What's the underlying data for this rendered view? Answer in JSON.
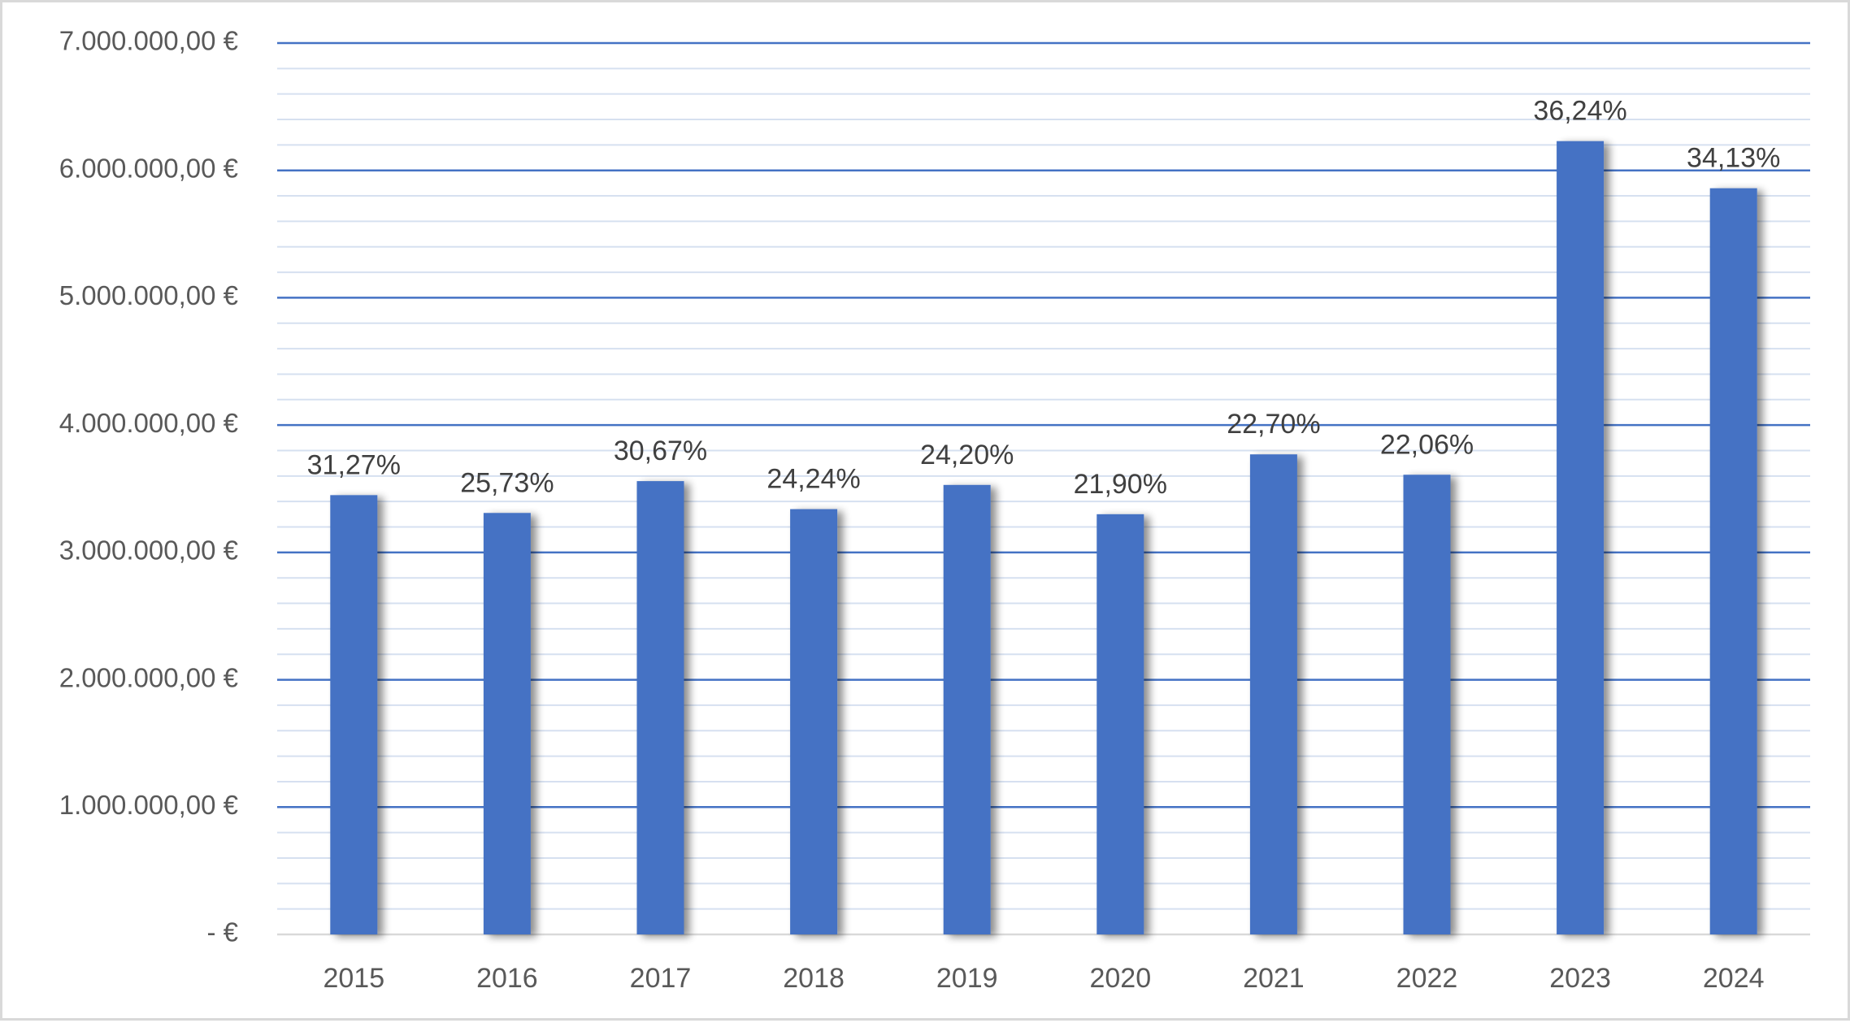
{
  "chart_data": {
    "type": "bar",
    "categories": [
      "2015",
      "2016",
      "2017",
      "2018",
      "2019",
      "2020",
      "2021",
      "2022",
      "2023",
      "2024"
    ],
    "series": [
      {
        "values": [
          3450000,
          3310000,
          3560000,
          3340000,
          3530000,
          3300000,
          3770000,
          3610000,
          6230000,
          5860000
        ],
        "data_labels": [
          "31,27%",
          "25,73%",
          "30,67%",
          "24,24%",
          "24,20%",
          "21,90%",
          "22,70%",
          "22,06%",
          "36,24%",
          "34,13%"
        ]
      }
    ],
    "ylim": [
      0,
      7000000
    ],
    "y_ticks": [
      0,
      1000000,
      2000000,
      3000000,
      4000000,
      5000000,
      6000000,
      7000000
    ],
    "y_tick_labels": [
      "-  €",
      "1.000.000,00 €",
      "2.000.000,00 €",
      "3.000.000,00 €",
      "4.000.000,00 €",
      "5.000.000,00 €",
      "6.000.000,00 €",
      "7.000.000,00 €"
    ],
    "minor_grid_step": 200000,
    "grid": true,
    "legend": "none",
    "title": "",
    "xlabel": "",
    "ylabel": "",
    "colors": {
      "bar": "#4472c4",
      "major_grid": "#4472c4",
      "minor_grid": "#d6e0f0",
      "axis": "#d9d9d9"
    }
  }
}
